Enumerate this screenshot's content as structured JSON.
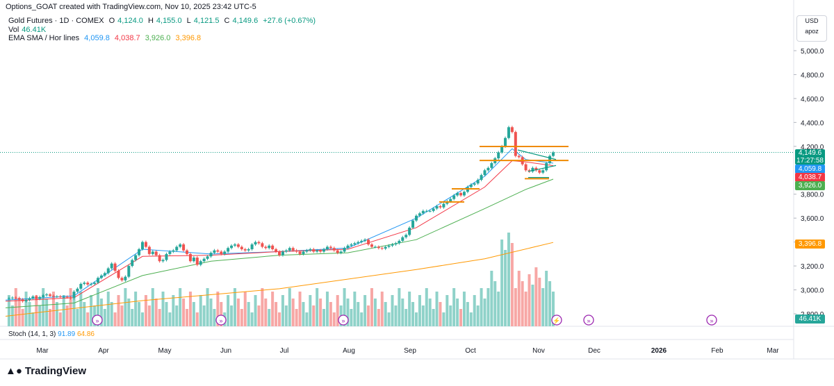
{
  "header": {
    "caption": "Options_GOAT created with TradingView.com, Nov 10, 2025 23:42 UTC-5"
  },
  "legend": {
    "symbol": "Gold Futures · 1D · COMEX",
    "open_label": "O",
    "open": "4,124.0",
    "high_label": "H",
    "high": "4,155.0",
    "low_label": "L",
    "low": "4,121.5",
    "close_label": "C",
    "close": "4,149.6",
    "change": "+27.6 (+0.67%)",
    "vol_label": "Vol",
    "vol": "46.41K",
    "ma_label": "EMA SMA / Hor lines",
    "ma1": "4,059.8",
    "ma2": "4,038.7",
    "ma3": "3,926.0",
    "ma4": "3,396.8"
  },
  "stoch_legend": {
    "label": "Stoch (14, 1, 3)",
    "k": "91.89",
    "d": "64.86"
  },
  "axis_box": {
    "currency": "USD",
    "mode": "apoz"
  },
  "tags": {
    "last": "4,149.6",
    "countdown": "17:27:58",
    "ma1": "4,059.8",
    "ma2": "4,038.7",
    "ma3": "3,926.0",
    "ma4": "3,396.8",
    "vol": "46.41K"
  },
  "colors": {
    "up": "#26a69a",
    "down": "#ef5350",
    "ma1": "#2196f3",
    "ma2": "#f23645",
    "ma3": "#4caf50",
    "ma4": "#ff9800",
    "hline": "#ef8a00",
    "tl": "#089981",
    "vol_up": "#8fd2c9",
    "vol_down": "#f7a7a5",
    "event": "#9c27b0"
  },
  "footer": {
    "brand": "TradingView"
  },
  "chart_data": {
    "type": "candlestick",
    "title": "Gold Futures · 1D · COMEX",
    "price_ticks": [
      "5,000.0",
      "4,800.0",
      "4,600.0",
      "4,400.0",
      "4,200.0",
      "3,800.0",
      "3,600.0",
      "3,400.0",
      "3,200.0",
      "3,000.0",
      "2,800.0"
    ],
    "month_ticks": [
      "Mar",
      "Apr",
      "May",
      "Jun",
      "Jul",
      "Aug",
      "Sep",
      "Oct",
      "Nov",
      "Dec",
      "2026",
      "Feb",
      "Mar"
    ],
    "ylim": [
      2800,
      5080
    ],
    "hlines": [
      4199,
      4082,
      3930,
      3845,
      3735
    ],
    "close_points": [
      [
        0,
        2925
      ],
      [
        5,
        2930
      ],
      [
        10,
        2935
      ],
      [
        15,
        2932
      ],
      [
        20,
        2920
      ],
      [
        25,
        2905
      ],
      [
        30,
        2915
      ],
      [
        35,
        2930
      ],
      [
        40,
        2945
      ],
      [
        45,
        2925
      ],
      [
        50,
        2940
      ],
      [
        55,
        2955
      ],
      [
        60,
        2962
      ],
      [
        65,
        2950
      ],
      [
        70,
        2945
      ],
      [
        75,
        2945
      ],
      [
        80,
        2940
      ],
      [
        85,
        2942
      ],
      [
        90,
        2938
      ],
      [
        95,
        2930
      ],
      [
        100,
        2985
      ],
      [
        105,
        3010
      ],
      [
        110,
        3050
      ],
      [
        115,
        3060
      ],
      [
        120,
        3045
      ],
      [
        125,
        3050
      ],
      [
        130,
        3060
      ],
      [
        135,
        3100
      ],
      [
        140,
        3120
      ],
      [
        145,
        3140
      ],
      [
        150,
        3180
      ],
      [
        155,
        3220
      ],
      [
        160,
        3160
      ],
      [
        165,
        3100
      ],
      [
        170,
        3080
      ],
      [
        175,
        3110
      ],
      [
        180,
        3200
      ],
      [
        185,
        3250
      ],
      [
        190,
        3290
      ],
      [
        195,
        3340
      ],
      [
        200,
        3400
      ],
      [
        205,
        3360
      ],
      [
        210,
        3300
      ],
      [
        215,
        3320
      ],
      [
        220,
        3290
      ],
      [
        225,
        3240
      ],
      [
        230,
        3250
      ],
      [
        235,
        3300
      ],
      [
        240,
        3320
      ],
      [
        245,
        3330
      ],
      [
        250,
        3360
      ],
      [
        255,
        3380
      ],
      [
        260,
        3330
      ],
      [
        265,
        3300
      ],
      [
        270,
        3240
      ],
      [
        275,
        3270
      ],
      [
        280,
        3210
      ],
      [
        285,
        3240
      ],
      [
        290,
        3260
      ],
      [
        295,
        3280
      ],
      [
        300,
        3310
      ],
      [
        305,
        3330
      ],
      [
        310,
        3320
      ],
      [
        315,
        3300
      ],
      [
        320,
        3320
      ],
      [
        325,
        3350
      ],
      [
        330,
        3370
      ],
      [
        335,
        3380
      ],
      [
        340,
        3360
      ],
      [
        345,
        3340
      ],
      [
        350,
        3330
      ],
      [
        355,
        3340
      ],
      [
        360,
        3380
      ],
      [
        365,
        3400
      ],
      [
        370,
        3390
      ],
      [
        375,
        3360
      ],
      [
        380,
        3350
      ],
      [
        385,
        3370
      ],
      [
        390,
        3340
      ],
      [
        395,
        3320
      ],
      [
        400,
        3290
      ],
      [
        405,
        3320
      ],
      [
        410,
        3330
      ],
      [
        415,
        3350
      ],
      [
        420,
        3330
      ],
      [
        425,
        3320
      ],
      [
        430,
        3300
      ],
      [
        435,
        3320
      ],
      [
        440,
        3330
      ],
      [
        445,
        3340
      ],
      [
        450,
        3320
      ],
      [
        455,
        3330
      ],
      [
        460,
        3320
      ],
      [
        465,
        3340
      ],
      [
        470,
        3360
      ],
      [
        475,
        3350
      ],
      [
        480,
        3330
      ],
      [
        485,
        3310
      ],
      [
        490,
        3320
      ],
      [
        495,
        3350
      ],
      [
        500,
        3370
      ],
      [
        505,
        3380
      ],
      [
        510,
        3390
      ],
      [
        515,
        3400
      ],
      [
        520,
        3410
      ],
      [
        525,
        3420
      ],
      [
        530,
        3380
      ],
      [
        535,
        3360
      ],
      [
        540,
        3360
      ],
      [
        545,
        3350
      ],
      [
        550,
        3345
      ],
      [
        555,
        3360
      ],
      [
        560,
        3370
      ],
      [
        565,
        3380
      ],
      [
        570,
        3390
      ],
      [
        575,
        3410
      ],
      [
        580,
        3440
      ],
      [
        585,
        3460
      ],
      [
        590,
        3520
      ],
      [
        595,
        3580
      ],
      [
        600,
        3620
      ],
      [
        605,
        3640
      ],
      [
        610,
        3660
      ],
      [
        615,
        3660
      ],
      [
        620,
        3660
      ],
      [
        625,
        3680
      ],
      [
        630,
        3700
      ],
      [
        635,
        3690
      ],
      [
        640,
        3720
      ],
      [
        645,
        3740
      ],
      [
        650,
        3760
      ],
      [
        655,
        3790
      ],
      [
        660,
        3810
      ],
      [
        665,
        3790
      ],
      [
        670,
        3820
      ],
      [
        675,
        3860
      ],
      [
        680,
        3880
      ],
      [
        685,
        3890
      ],
      [
        690,
        3920
      ],
      [
        695,
        3960
      ],
      [
        700,
        4000
      ],
      [
        705,
        4020
      ],
      [
        710,
        4060
      ],
      [
        715,
        4100
      ],
      [
        720,
        4150
      ],
      [
        725,
        4200
      ],
      [
        730,
        4270
      ],
      [
        735,
        4360
      ],
      [
        740,
        4320
      ],
      [
        745,
        4120
      ],
      [
        750,
        4110
      ],
      [
        755,
        4050
      ],
      [
        760,
        4000
      ],
      [
        765,
        3990
      ],
      [
        770,
        4020
      ],
      [
        775,
        4000
      ],
      [
        780,
        3980
      ],
      [
        785,
        4000
      ],
      [
        790,
        4060
      ],
      [
        795,
        4120
      ],
      [
        800,
        4149.6
      ]
    ],
    "ma_series": [
      {
        "name": "4,059.8",
        "points": [
          [
            0,
            2915
          ],
          [
            100,
            2950
          ],
          [
            200,
            3340
          ],
          [
            300,
            3300
          ],
          [
            400,
            3320
          ],
          [
            500,
            3350
          ],
          [
            600,
            3600
          ],
          [
            700,
            3950
          ],
          [
            740,
            4180
          ],
          [
            760,
            4090
          ],
          [
            800,
            4059.8
          ]
        ]
      },
      {
        "name": "4,038.7",
        "points": [
          [
            0,
            2905
          ],
          [
            100,
            2935
          ],
          [
            200,
            3280
          ],
          [
            300,
            3290
          ],
          [
            400,
            3320
          ],
          [
            500,
            3340
          ],
          [
            600,
            3520
          ],
          [
            700,
            3860
          ],
          [
            740,
            4080
          ],
          [
            760,
            4070
          ],
          [
            800,
            4038.7
          ]
        ]
      },
      {
        "name": "3,926.0",
        "points": [
          [
            0,
            2850
          ],
          [
            100,
            2890
          ],
          [
            200,
            3120
          ],
          [
            300,
            3240
          ],
          [
            400,
            3290
          ],
          [
            500,
            3310
          ],
          [
            600,
            3420
          ],
          [
            700,
            3680
          ],
          [
            760,
            3840
          ],
          [
            800,
            3926.0
          ]
        ]
      },
      {
        "name": "3,396.8",
        "points": [
          [
            0,
            2780
          ],
          [
            200,
            2910
          ],
          [
            400,
            3010
          ],
          [
            600,
            3170
          ],
          [
            700,
            3260
          ],
          [
            800,
            3396.8
          ]
        ]
      }
    ]
  }
}
